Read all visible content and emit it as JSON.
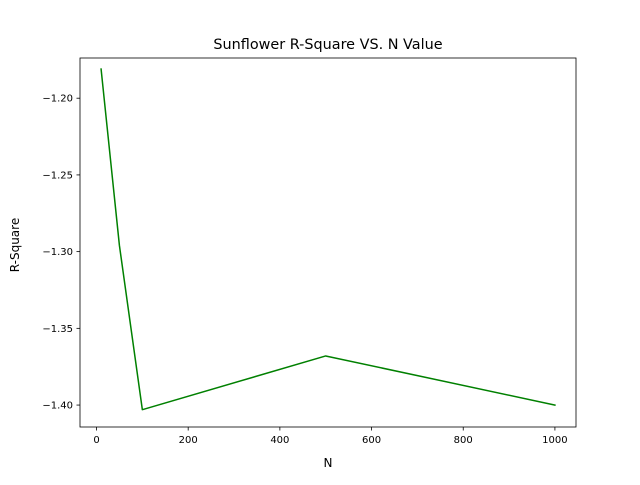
{
  "chart_data": {
    "type": "line",
    "title": "Sunflower R-Square VS. N Value",
    "xlabel": "N",
    "ylabel": "R-Square",
    "xlim": [
      -36,
      1046
    ],
    "ylim": [
      -1.4143,
      -1.1738
    ],
    "xticks": [
      0,
      200,
      400,
      600,
      800,
      1000
    ],
    "xtick_labels": [
      "0",
      "200",
      "400",
      "600",
      "800",
      "1000"
    ],
    "yticks": [
      -1.2,
      -1.25,
      -1.3,
      -1.35,
      -1.4
    ],
    "ytick_labels": [
      "−1.20",
      "−1.25",
      "−1.30",
      "−1.35",
      "−1.40"
    ],
    "grid": false,
    "legend": "none",
    "series": [
      {
        "color": "#008000",
        "x": [
          10,
          50,
          100,
          500,
          1000
        ],
        "y": [
          -1.181,
          -1.296,
          -1.403,
          -1.368,
          -1.4
        ]
      }
    ]
  }
}
